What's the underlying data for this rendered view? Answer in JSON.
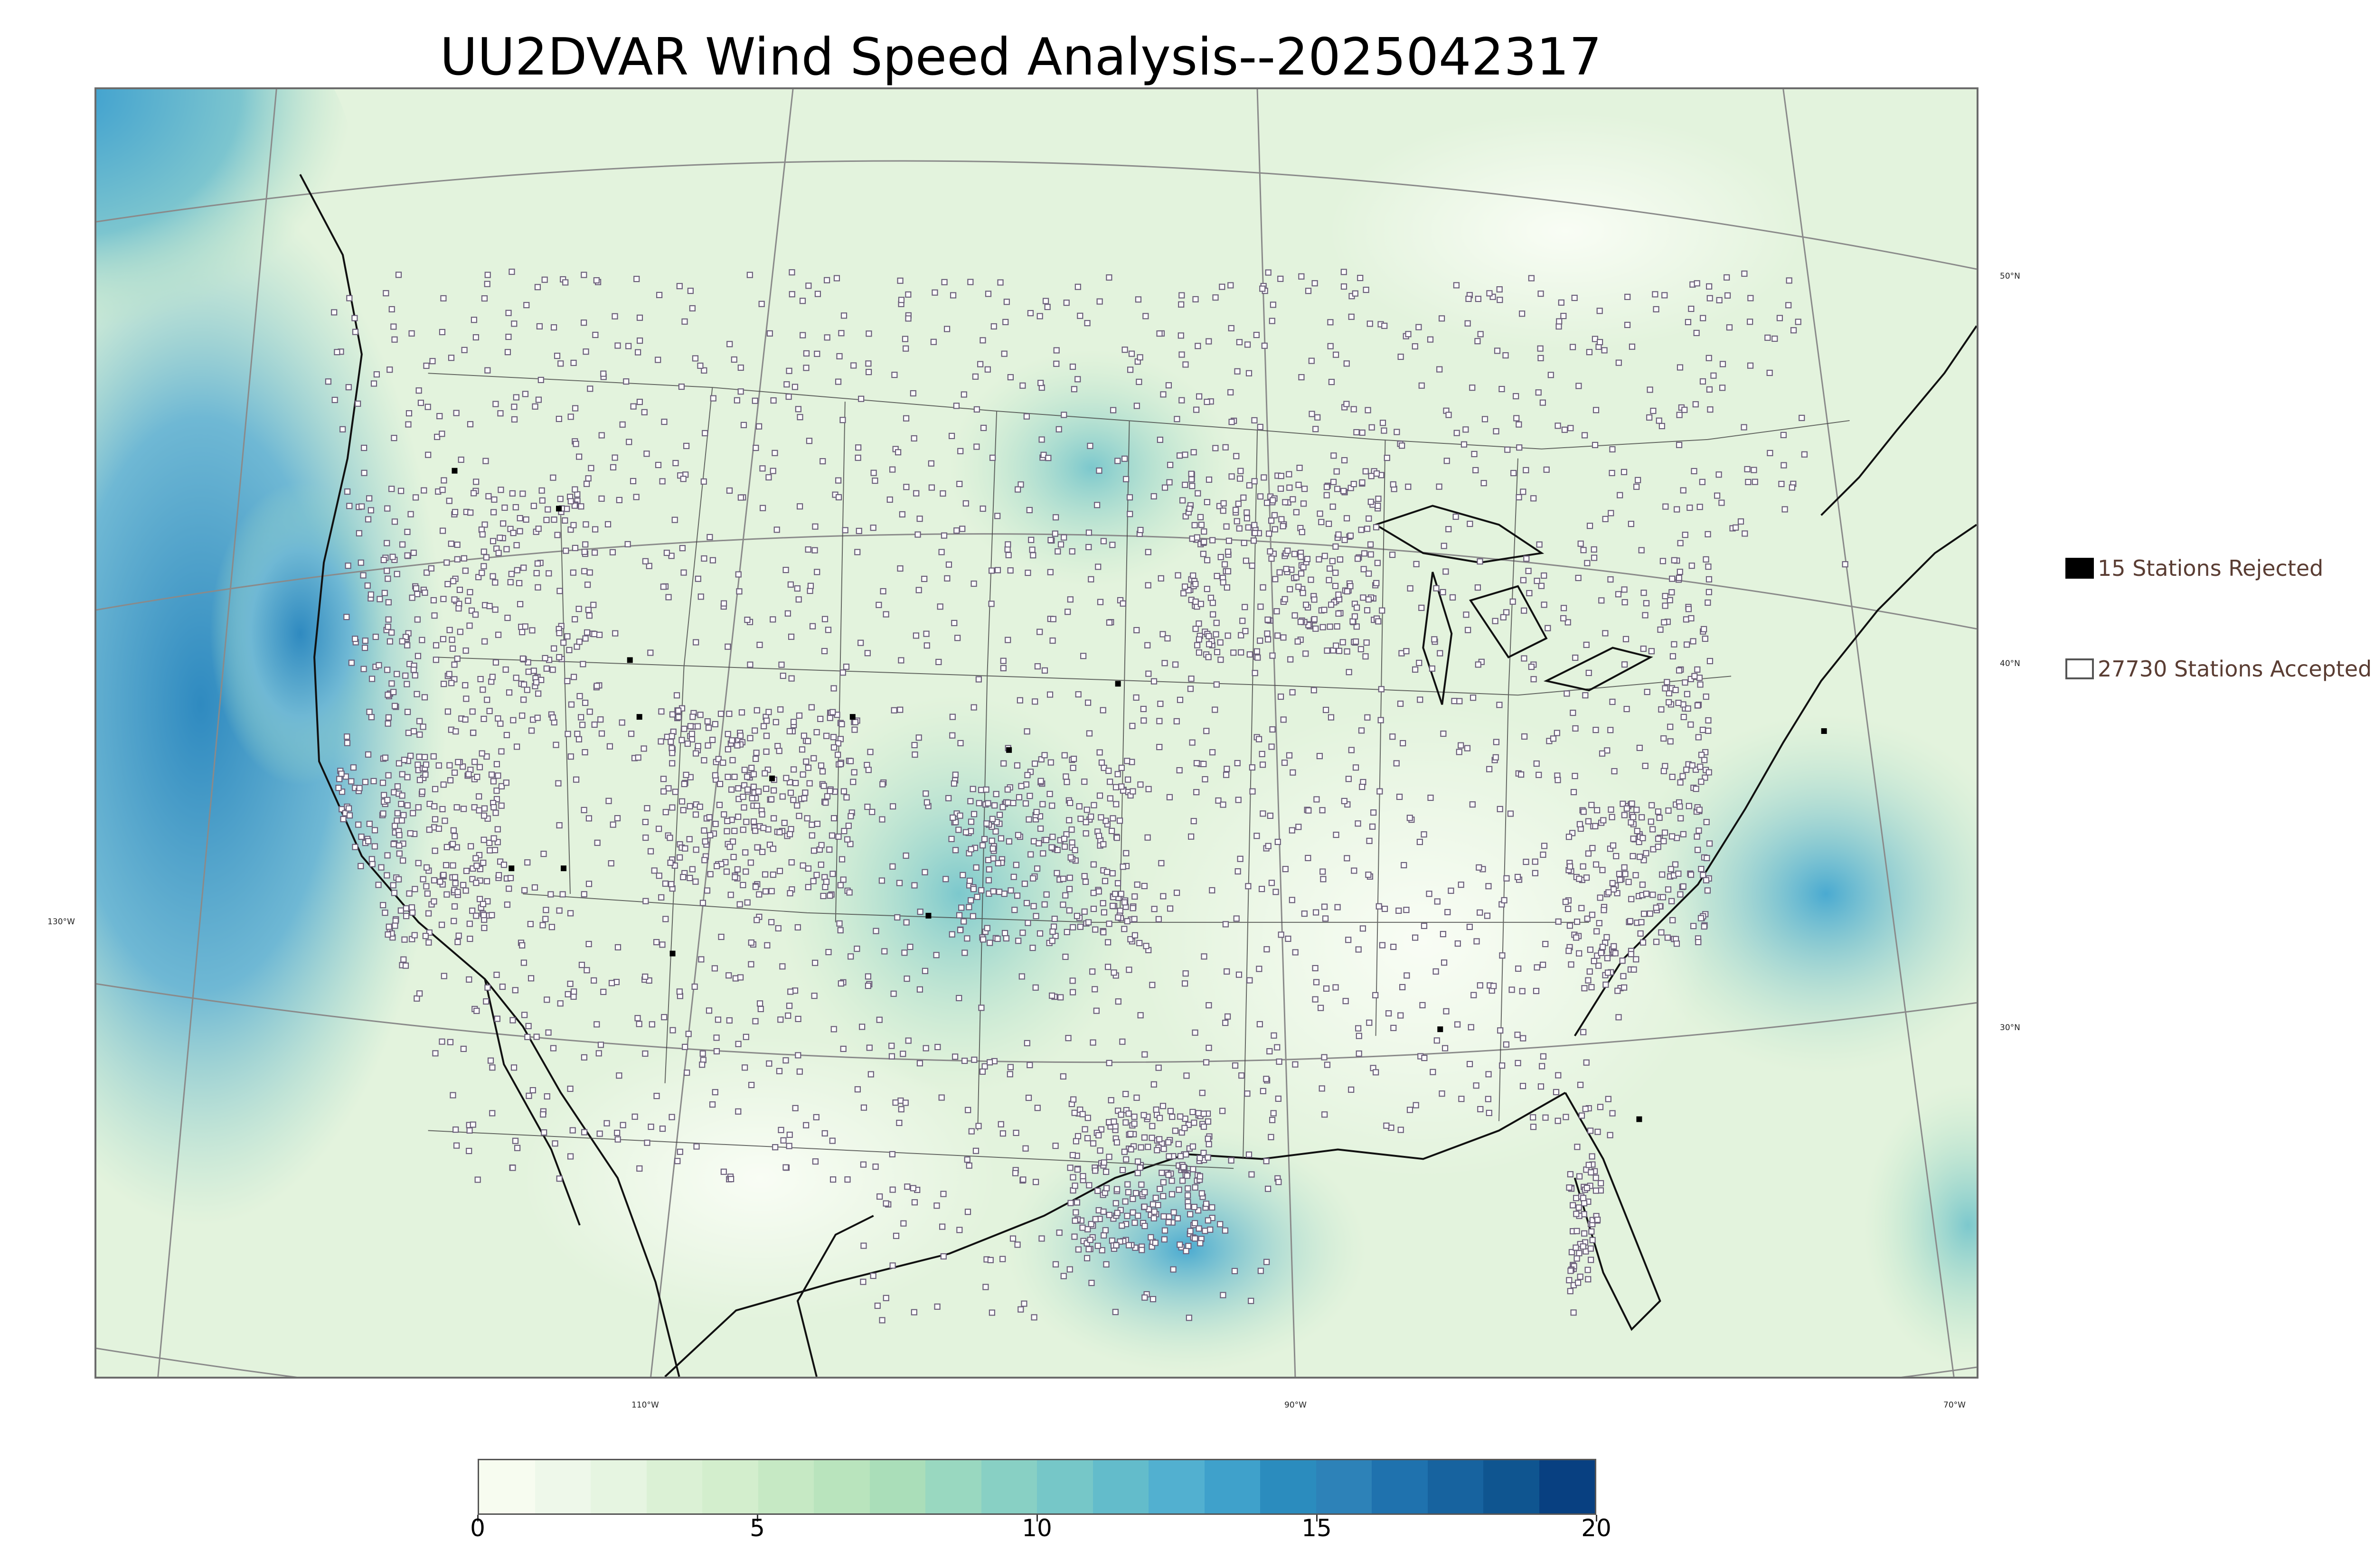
{
  "title": "UU2DVAR Wind Speed Analysis--2025042317",
  "map": {
    "lat_labels": [
      "50°N",
      "40°N",
      "30°N"
    ],
    "lon_labels": [
      "130°W",
      "110°W",
      "90°W",
      "70°W"
    ],
    "background": "#eaf5e6",
    "coast_color": "#111111",
    "grid_color": "#8a8a8a"
  },
  "legend": {
    "rejected": {
      "label": "15 Stations Rejected",
      "color": "#000000"
    },
    "accepted": {
      "label": "27730 Stations Accepted",
      "color": "#ffffff"
    }
  },
  "colorbar": {
    "min": 0,
    "max": 20,
    "ticks": [
      "0",
      "5",
      "10",
      "15",
      "20"
    ],
    "colors": [
      "#f7fcf0",
      "#eef8ea",
      "#e6f5e1",
      "#dbf1d5",
      "#d3eecd",
      "#c6e9c4",
      "#b9e4bd",
      "#aadeb9",
      "#99d8c0",
      "#88d0c4",
      "#76c7c8",
      "#63bccb",
      "#52b0d0",
      "#3fa1cb",
      "#2b8cbe",
      "#2d82b8",
      "#1f72ae",
      "#17639f",
      "#0f5590",
      "#084081"
    ]
  }
}
